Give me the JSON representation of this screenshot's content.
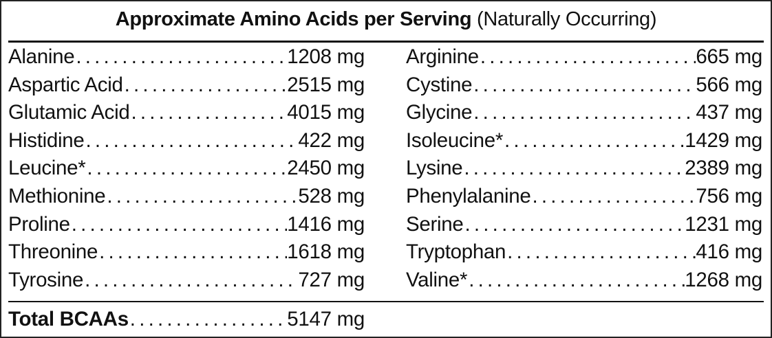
{
  "title": {
    "bold": "Approximate Amino Acids per Serving",
    "normal": "(Naturally Occurring)"
  },
  "left_column": [
    {
      "name": "Alanine",
      "value": "1208 mg"
    },
    {
      "name": "Aspartic Acid",
      "value": "2515 mg"
    },
    {
      "name": "Glutamic Acid",
      "value": "4015 mg"
    },
    {
      "name": "Histidine",
      "value": "422 mg"
    },
    {
      "name": "Leucine*",
      "value": "2450 mg"
    },
    {
      "name": "Methionine",
      "value": "528 mg"
    },
    {
      "name": "Proline",
      "value": "1416 mg"
    },
    {
      "name": "Threonine",
      "value": "1618 mg"
    },
    {
      "name": "Tyrosine",
      "value": "727 mg"
    }
  ],
  "right_column": [
    {
      "name": "Arginine",
      "value": "665 mg"
    },
    {
      "name": "Cystine",
      "value": "566 mg"
    },
    {
      "name": "Glycine",
      "value": "437 mg"
    },
    {
      "name": "Isoleucine*",
      "value": "1429 mg"
    },
    {
      "name": "Lysine",
      "value": "2389 mg"
    },
    {
      "name": "Phenylalanine",
      "value": "756 mg"
    },
    {
      "name": "Serine",
      "value": "1231 mg"
    },
    {
      "name": "Tryptophan",
      "value": "416 mg"
    },
    {
      "name": "Valine*",
      "value": "1268 mg"
    }
  ],
  "total": {
    "name": "Total BCAAs",
    "value": "5147 mg"
  }
}
